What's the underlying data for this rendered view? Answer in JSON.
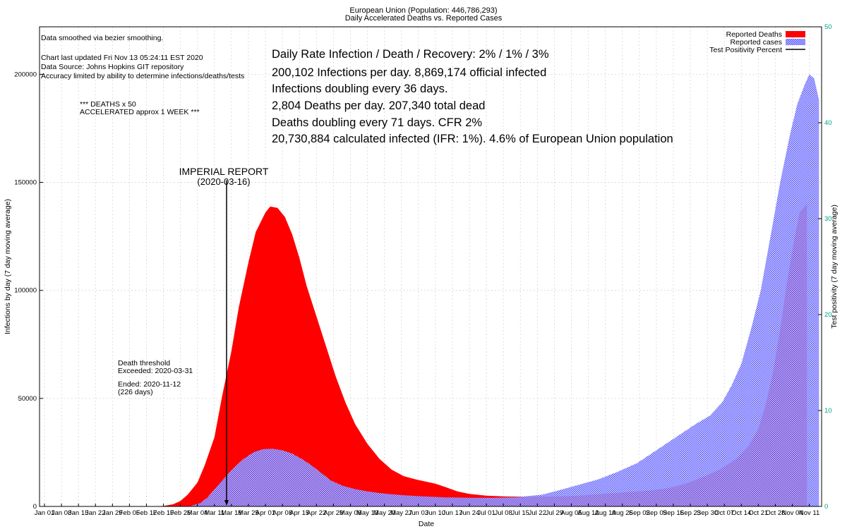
{
  "chart_data": {
    "type": "area",
    "title": "European Union (Population: 446,786,293)",
    "subtitle": "Daily Accelerated Deaths vs. Reported Cases",
    "xlabel": "Date",
    "ylabel": "Infections by day (7 day moving average)",
    "y2label": "Test positivity (7 day moving average)",
    "ylim": [
      0,
      222000
    ],
    "y2lim": [
      0,
      50
    ],
    "xlim": [
      0,
      315
    ],
    "yticks": [
      0,
      50000,
      100000,
      150000,
      200000
    ],
    "y2ticks": [
      0,
      10,
      20,
      30,
      40,
      50
    ],
    "xtick_labels": [
      "Jan 01",
      "Jan 08",
      "Jan 15",
      "Jan 22",
      "Jan 29",
      "Feb 05",
      "Feb 12",
      "Feb 19",
      "Feb 26",
      "Mar 04",
      "Mar 11",
      "Mar 18",
      "Mar 25",
      "Apr 01",
      "Apr 08",
      "Apr 15",
      "Apr 22",
      "Apr 29",
      "May 06",
      "May 13",
      "May 20",
      "May 27",
      "Jun 03",
      "Jun 10",
      "Jun 17",
      "Jun 24",
      "Jul 01",
      "Jul 08",
      "Jul 15",
      "Jul 22",
      "Jul 29",
      "Aug 05",
      "Aug 12",
      "Aug 19",
      "Aug 26",
      "Sep 02",
      "Sep 09",
      "Sep 16",
      "Sep 23",
      "Sep 30",
      "Oct 07",
      "Oct 14",
      "Oct 21",
      "Oct 28",
      "Nov 04",
      "Nov 11"
    ],
    "legend": {
      "position": "top-right",
      "entries": [
        "Reported Deaths",
        "Reported cases",
        "Test Positivity Percent"
      ]
    },
    "notes": [
      "Data smoothed via bezier smoothing.",
      "Chart last updated Fri Nov 13 05:24:11 EST 2020",
      "Data Source: Johns Hopkins GIT repository",
      "Accuracy limited by ability to determine infections/deaths/tests"
    ],
    "deaths_note": [
      "*** DEATHS x 50",
      "ACCELERATED approx 1 WEEK ***"
    ],
    "stats": [
      "Daily Rate Infection / Death / Recovery: 2% / 1% / 3%",
      "200,102 Infections per day.  8,869,174 official infected",
      "Infections doubling every 36 days.",
      "2,804 Deaths per day.  207,340 total dead",
      "Deaths doubling every 71 days.  CFR 2%",
      "20,730,884 calculated infected (IFR: 1%).  4.6% of European Union population"
    ],
    "annotation": {
      "label": "IMPERIAL REPORT",
      "date_label": "(2020-03-16)",
      "day": 75,
      "arrow_from_value": 151000
    },
    "threshold_text": [
      "Death threshold",
      "Exceeded: 2020-03-31",
      "",
      "Ended: 2020-11-12",
      "(226 days)"
    ],
    "series": [
      {
        "name": "Reported Deaths",
        "color": "#ff0000",
        "points": [
          [
            0,
            0
          ],
          [
            42,
            0
          ],
          [
            49,
            200
          ],
          [
            53,
            1000
          ],
          [
            56,
            2500
          ],
          [
            59,
            5500
          ],
          [
            63,
            11000
          ],
          [
            66,
            19000
          ],
          [
            70,
            32000
          ],
          [
            73,
            50000
          ],
          [
            77,
            72000
          ],
          [
            80,
            92000
          ],
          [
            84,
            113000
          ],
          [
            87,
            127000
          ],
          [
            91,
            136000
          ],
          [
            93,
            138800
          ],
          [
            96,
            138200
          ],
          [
            99,
            134000
          ],
          [
            102,
            126000
          ],
          [
            105,
            115000
          ],
          [
            108,
            102000
          ],
          [
            112,
            88000
          ],
          [
            116,
            74000
          ],
          [
            120,
            60000
          ],
          [
            124,
            48000
          ],
          [
            128,
            38000
          ],
          [
            133,
            29000
          ],
          [
            138,
            22000
          ],
          [
            143,
            17000
          ],
          [
            148,
            14000
          ],
          [
            153,
            12500
          ],
          [
            157,
            11500
          ],
          [
            161,
            10500
          ],
          [
            165,
            9000
          ],
          [
            170,
            7000
          ],
          [
            175,
            5800
          ],
          [
            182,
            5000
          ],
          [
            190,
            4600
          ],
          [
            200,
            4500
          ],
          [
            210,
            4600
          ],
          [
            220,
            5000
          ],
          [
            230,
            5800
          ],
          [
            240,
            6600
          ],
          [
            250,
            7400
          ],
          [
            257,
            8500
          ],
          [
            264,
            10500
          ],
          [
            271,
            13500
          ],
          [
            278,
            17000
          ],
          [
            285,
            22000
          ],
          [
            290,
            28000
          ],
          [
            294,
            36000
          ],
          [
            297,
            47000
          ],
          [
            300,
            62000
          ],
          [
            303,
            82000
          ],
          [
            306,
            105000
          ],
          [
            309,
            125000
          ],
          [
            311,
            136000
          ],
          [
            314,
            140000
          ],
          [
            314,
            0
          ]
        ]
      },
      {
        "name": "Reported cases",
        "color": "#3333ff",
        "points": [
          [
            0,
            0
          ],
          [
            56,
            0
          ],
          [
            60,
            200
          ],
          [
            64,
            1500
          ],
          [
            67,
            4000
          ],
          [
            70,
            8000
          ],
          [
            74,
            13000
          ],
          [
            78,
            18000
          ],
          [
            82,
            22000
          ],
          [
            86,
            25000
          ],
          [
            90,
            26500
          ],
          [
            94,
            26700
          ],
          [
            98,
            26000
          ],
          [
            102,
            24500
          ],
          [
            106,
            22000
          ],
          [
            110,
            19000
          ],
          [
            114,
            15500
          ],
          [
            118,
            12000
          ],
          [
            123,
            9500
          ],
          [
            128,
            8000
          ],
          [
            133,
            7000
          ],
          [
            138,
            6200
          ],
          [
            143,
            5600
          ],
          [
            148,
            5200
          ],
          [
            155,
            4700
          ],
          [
            165,
            4200
          ],
          [
            175,
            4000
          ],
          [
            185,
            4000
          ],
          [
            195,
            4300
          ],
          [
            205,
            5500
          ],
          [
            212,
            7500
          ],
          [
            220,
            10000
          ],
          [
            228,
            12500
          ],
          [
            236,
            16000
          ],
          [
            244,
            20000
          ],
          [
            252,
            26000
          ],
          [
            260,
            32000
          ],
          [
            268,
            38000
          ],
          [
            274,
            42000
          ],
          [
            279,
            48000
          ],
          [
            283,
            56000
          ],
          [
            287,
            66000
          ],
          [
            291,
            82000
          ],
          [
            295,
            100000
          ],
          [
            299,
            125000
          ],
          [
            303,
            150000
          ],
          [
            307,
            172000
          ],
          [
            310,
            186000
          ],
          [
            313,
            195000
          ],
          [
            315,
            200000
          ],
          [
            317,
            198000
          ],
          [
            319,
            188000
          ],
          [
            319,
            0
          ]
        ]
      },
      {
        "name": "Test Positivity Percent",
        "color": "#000000",
        "points": []
      }
    ]
  }
}
